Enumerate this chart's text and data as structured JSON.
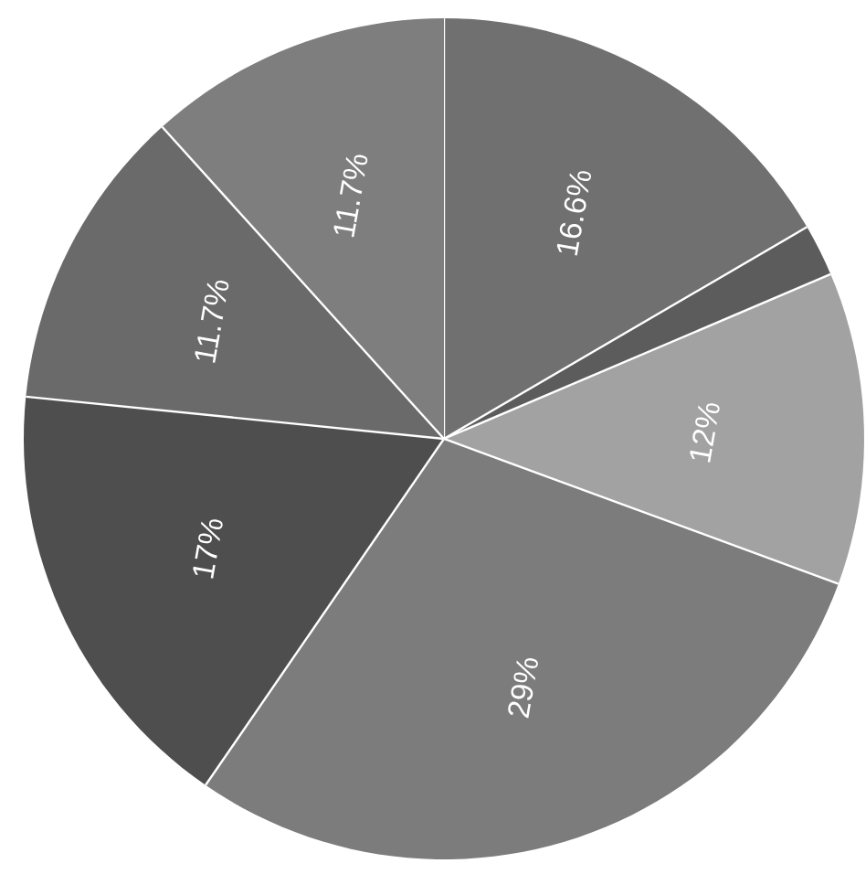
{
  "chart_data": {
    "type": "pie",
    "categories": [
      null,
      null,
      null,
      null,
      null,
      null,
      null
    ],
    "values": [
      16.6,
      2,
      12,
      29,
      17,
      11.7,
      11.7
    ],
    "value_labels": [
      "16.6%",
      null,
      "12%",
      "29%",
      "17%",
      "11.7%",
      "11.7%"
    ],
    "colors": [
      "#707070",
      "#5c5c5c",
      "#a2a2a2",
      "#7c7c7c",
      "#4e4e4e",
      "#6a6a6a",
      "#7e7e7e"
    ]
  }
}
